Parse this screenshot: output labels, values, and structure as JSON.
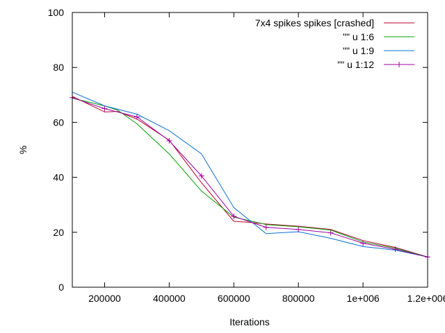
{
  "chart_data": {
    "type": "line",
    "xlabel": "Iterations",
    "ylabel": "%",
    "xlim": [
      100000,
      1200000
    ],
    "ylim": [
      0,
      100
    ],
    "grid": false,
    "legend_position": "top-right",
    "x_ticks": [
      {
        "value": 200000,
        "label": "200000"
      },
      {
        "value": 400000,
        "label": "400000"
      },
      {
        "value": 600000,
        "label": "600000"
      },
      {
        "value": 800000,
        "label": "800000"
      },
      {
        "value": 1000000,
        "label": "1e+006"
      },
      {
        "value": 1200000,
        "label": "1.2e+006"
      }
    ],
    "y_ticks": [
      {
        "value": 0,
        "label": "0"
      },
      {
        "value": 20,
        "label": "20"
      },
      {
        "value": 40,
        "label": "40"
      },
      {
        "value": 60,
        "label": "60"
      },
      {
        "value": 80,
        "label": "80"
      },
      {
        "value": 100,
        "label": "100"
      }
    ],
    "x": [
      100000,
      200000,
      300000,
      400000,
      500000,
      600000,
      700000,
      800000,
      900000,
      1000000,
      1100000,
      1200000
    ],
    "series": [
      {
        "name": "7x4 spikes spikes [crashed]",
        "color": "#b3002a",
        "marker": "none",
        "x": [
          100000,
          200000,
          240000,
          300000,
          400000,
          500000,
          600000,
          650000,
          700000,
          800000,
          900000,
          1000000,
          1100000,
          1200000
        ],
        "values": [
          69.5,
          63.8,
          64.0,
          61.2,
          53.5,
          38.0,
          24.0,
          23.6,
          23.0,
          22.2,
          21.0,
          17.0,
          14.5,
          11.0
        ]
      },
      {
        "name": "\"\" u 1:6",
        "color": "#00a000",
        "marker": "none",
        "x": [
          100000,
          200000,
          240000,
          300000,
          400000,
          500000,
          600000,
          650000,
          700000,
          800000,
          900000,
          1000000,
          1100000,
          1200000
        ],
        "values": [
          68.8,
          66.0,
          64.5,
          59.5,
          48.5,
          35.0,
          25.5,
          24.2,
          22.8,
          22.0,
          20.8,
          16.5,
          14.2,
          11.0
        ]
      },
      {
        "name": "\"\" u 1:9",
        "color": "#0a6fd6",
        "marker": "none",
        "x": [
          100000,
          200000,
          300000,
          400000,
          500000,
          600000,
          700000,
          800000,
          900000,
          1000000,
          1100000,
          1200000
        ],
        "values": [
          71.0,
          66.0,
          63.0,
          57.0,
          48.5,
          29.0,
          19.5,
          20.2,
          17.8,
          14.8,
          13.5,
          11.0
        ]
      },
      {
        "name": "\"\" u 1:12",
        "color": "#a000a0",
        "marker": "plus",
        "x": [
          100000,
          200000,
          300000,
          400000,
          500000,
          600000,
          700000,
          800000,
          900000,
          1000000,
          1100000,
          1200000
        ],
        "values": [
          69.0,
          65.0,
          62.0,
          53.3,
          40.5,
          25.8,
          21.8,
          21.0,
          19.8,
          16.0,
          13.8,
          11.0
        ]
      }
    ]
  }
}
